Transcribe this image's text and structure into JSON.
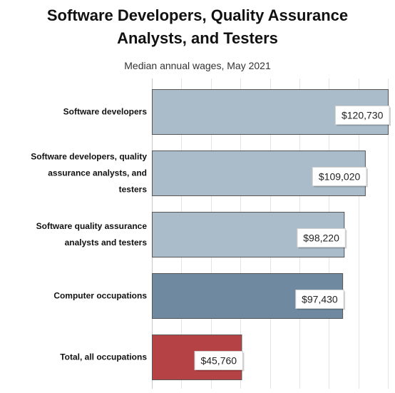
{
  "chart_data": {
    "type": "bar",
    "orientation": "horizontal",
    "title_lines": [
      "Software Developers, Quality Assurance",
      "Analysts, and Testers"
    ],
    "subtitle": "Median annual wages, May 2021",
    "categories": [
      [
        "Software developers"
      ],
      [
        "Software developers, quality",
        "assurance analysts, and",
        "testers"
      ],
      [
        "Software quality assurance",
        "analysts and testers"
      ],
      [
        "Computer occupations"
      ],
      [
        "Total, all occupations"
      ]
    ],
    "values": [
      120730,
      109020,
      98220,
      97430,
      45760
    ],
    "value_labels": [
      "$120,730",
      "$109,020",
      "$98,220",
      "$97,430",
      "$45,760"
    ],
    "bar_colors": [
      "#aabcc9",
      "#aabcc9",
      "#aabcc9",
      "#6f8aa0",
      "#b54245"
    ],
    "xlim": [
      0,
      120730
    ],
    "grid": true,
    "legend": "none"
  }
}
